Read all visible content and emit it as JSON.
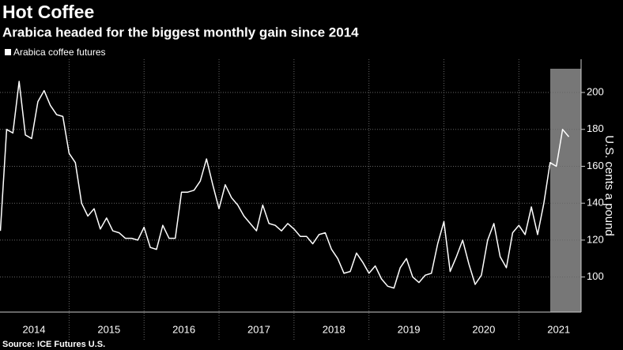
{
  "chart_data": {
    "type": "line",
    "title": "Hot Coffee",
    "subtitle": "Arabica headed for the biggest monthly gain since 2014",
    "y_axis_label": "U.S. cents a pound",
    "source": "Source: ICE Futures U.S.",
    "categories": [
      null,
      null,
      null,
      null,
      null,
      "2014",
      null,
      null,
      null,
      null,
      null,
      null,
      null,
      null,
      null,
      null,
      null,
      "2015",
      null,
      null,
      null,
      null,
      null,
      null,
      null,
      null,
      null,
      null,
      null,
      "2016",
      null,
      null,
      null,
      null,
      null,
      null,
      null,
      null,
      null,
      null,
      null,
      "2017",
      null,
      null,
      null,
      null,
      null,
      null,
      null,
      null,
      null,
      null,
      null,
      "2018",
      null,
      null,
      null,
      null,
      null,
      null,
      null,
      null,
      null,
      null,
      null,
      "2019",
      null,
      null,
      null,
      null,
      null,
      null,
      null,
      null,
      null,
      null,
      null,
      "2020",
      null,
      null,
      null,
      null,
      null,
      null,
      null,
      null,
      null,
      null,
      null,
      "2021",
      null,
      null
    ],
    "series": [
      {
        "name": "Arabica coffee futures",
        "color": "#ffffff",
        "values": [
          125,
          180,
          178,
          206,
          177,
          175,
          195,
          201,
          193,
          188,
          187,
          167,
          162,
          140,
          133,
          137,
          126,
          132,
          125,
          124,
          121,
          121,
          120,
          127,
          116,
          115,
          128,
          121,
          121,
          146,
          146,
          147,
          152,
          164,
          150,
          137,
          150,
          143,
          139,
          133,
          129,
          125,
          139,
          129,
          128,
          125,
          129,
          126,
          122,
          122,
          118,
          123,
          124,
          115,
          110,
          102,
          103,
          113,
          108,
          102,
          106,
          99,
          95,
          94,
          105,
          110,
          100,
          97,
          101,
          102,
          118,
          130,
          103,
          111,
          120,
          107,
          96,
          101,
          120,
          129,
          111,
          105,
          124,
          128,
          123,
          138,
          123,
          140,
          162,
          160,
          180,
          176
        ]
      }
    ],
    "ylim": [
      81,
      218
    ],
    "yticks": [
      100,
      120,
      140,
      160,
      180,
      200
    ],
    "grid": true
  }
}
